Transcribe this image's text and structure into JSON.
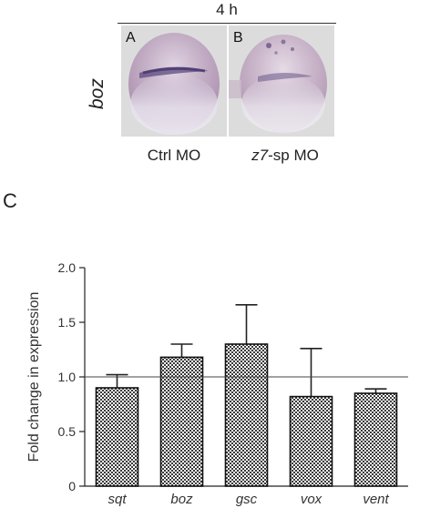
{
  "top_figure": {
    "time_label": "4 h",
    "gene_label": "boz",
    "panels": [
      {
        "letter": "A",
        "condition": "Ctrl MO"
      },
      {
        "letter": "B",
        "condition_italic": "z7",
        "condition_rest": "-sp MO"
      }
    ]
  },
  "panel_c_label": "C",
  "colors": {
    "bar_fill": "#7a7a7a",
    "axis": "#222222",
    "embryo_stain": "#4a3a7a"
  },
  "chart_data": {
    "type": "bar",
    "categories": [
      "sqt",
      "boz",
      "gsc",
      "vox",
      "vent"
    ],
    "values": [
      0.9,
      1.18,
      1.3,
      0.82,
      0.85
    ],
    "error_upper": [
      1.02,
      1.3,
      1.66,
      1.26,
      0.89
    ],
    "ylabel": "Fold change in expression",
    "xlabel": "",
    "ylim": [
      0,
      2.0
    ],
    "yticks": [
      0,
      0.5,
      1.0,
      1.5,
      2.0
    ],
    "ytick_labels": [
      "0",
      "0.5",
      "1.0",
      "1.5",
      "2.0"
    ],
    "reference_line": 1.0,
    "pattern": "checkered",
    "grid": false
  }
}
